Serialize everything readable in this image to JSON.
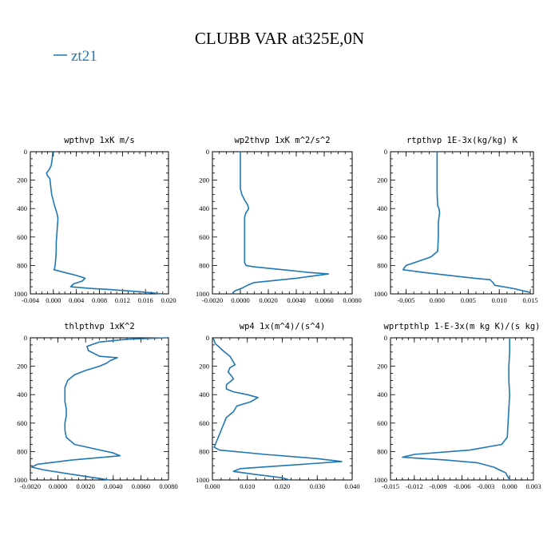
{
  "figure": {
    "title": "CLUBB VAR at325E,0N",
    "legend": {
      "label": "zt21",
      "color": "#1f77b4"
    }
  },
  "chart_data": [
    {
      "type": "line",
      "title": "wpthvp  1xK m/s",
      "xlim": [
        -0.004,
        0.02
      ],
      "xticks": [
        "-0.004",
        "0.000",
        "0.004",
        "0.008",
        "0.012",
        "0.016",
        "0.020"
      ],
      "xtick_values": [
        -0.004,
        0.0,
        0.004,
        0.008,
        0.012,
        0.016,
        0.02
      ],
      "ylim": [
        0,
        1000
      ],
      "y_inverted": true,
      "yticks": [
        "0",
        "200",
        "400",
        "600",
        "800",
        "1000"
      ],
      "series": [
        {
          "name": "zt21",
          "x": [
            -0.0001,
            -0.0002,
            -0.0004,
            -0.0008,
            -0.0012,
            -0.001,
            -0.0006,
            -0.0005,
            -0.0003,
            0.0002,
            0.0006,
            0.0008,
            0.0007,
            0.0006,
            0.0005,
            0.0005,
            0.0004,
            0.0003,
            0.0002,
            0.0001,
            0.002,
            0.004,
            0.0055,
            0.005,
            0.0035,
            0.003,
            0.006,
            0.01,
            0.015,
            0.019
          ],
          "y": [
            0,
            50,
            100,
            130,
            150,
            170,
            190,
            230,
            300,
            380,
            430,
            470,
            520,
            580,
            640,
            700,
            760,
            800,
            820,
            830,
            850,
            870,
            890,
            910,
            930,
            950,
            960,
            970,
            985,
            1000
          ]
        }
      ]
    },
    {
      "type": "line",
      "title": "wp2thvp  1xK m^2/s^2",
      "xlim": [
        -0.002,
        0.008
      ],
      "xticks": [
        "-0.0020",
        "0.0000",
        "0.0020",
        "0.0040",
        "0.0060",
        "0.0080"
      ],
      "xtick_values": [
        -0.002,
        0.0,
        0.002,
        0.004,
        0.006,
        0.008
      ],
      "ylim": [
        0,
        1000
      ],
      "y_inverted": true,
      "yticks": [
        "0",
        "200",
        "400",
        "600",
        "800",
        "1000"
      ],
      "series": [
        {
          "name": "zt21",
          "x": [
            0.0,
            0.0,
            0.0,
            0.0,
            0.0001,
            0.0003,
            0.0005,
            0.0006,
            0.0004,
            0.0003,
            0.0003,
            0.0003,
            0.0003,
            0.0003,
            0.0004,
            0.001,
            0.003,
            0.005,
            0.0063,
            0.004,
            0.001,
            0.0005,
            0.0001,
            -0.0004,
            -0.0006
          ],
          "y": [
            0,
            100,
            200,
            260,
            300,
            340,
            370,
            400,
            430,
            460,
            500,
            600,
            700,
            780,
            800,
            810,
            830,
            850,
            860,
            890,
            920,
            940,
            960,
            980,
            1000
          ]
        }
      ]
    },
    {
      "type": "line",
      "title": "rtpthvp  1E-3x(kg/kg) K",
      "xlim": [
        -0.0075,
        0.0155
      ],
      "xticks": [
        "-0.005",
        "0.000",
        "0.005",
        "0.010",
        "0.015"
      ],
      "xtick_values": [
        -0.005,
        0.0,
        0.005,
        0.01,
        0.015
      ],
      "ylim": [
        0,
        1000
      ],
      "y_inverted": true,
      "yticks": [
        "0",
        "200",
        "400",
        "600",
        "800",
        "1000"
      ],
      "series": [
        {
          "name": "zt21",
          "x": [
            0.0,
            0.0,
            0.0,
            0.0001,
            0.0003,
            0.0004,
            0.0003,
            0.0002,
            0.0002,
            0.0001,
            -0.001,
            -0.003,
            -0.005,
            -0.0055,
            -0.002,
            0.002,
            0.006,
            0.0085,
            0.009,
            0.0093,
            0.012,
            0.015
          ],
          "y": [
            0,
            100,
            300,
            380,
            400,
            430,
            460,
            500,
            600,
            700,
            740,
            770,
            800,
            830,
            850,
            870,
            890,
            900,
            920,
            940,
            960,
            990
          ]
        }
      ]
    },
    {
      "type": "line",
      "title": "thlpthvp  1xK^2",
      "xlim": [
        -0.002,
        0.008
      ],
      "xticks": [
        "-0.0020",
        "0.0000",
        "0.0020",
        "0.0040",
        "0.0060",
        "0.0080"
      ],
      "xtick_values": [
        -0.002,
        0.0,
        0.002,
        0.004,
        0.006,
        0.008
      ],
      "ylim": [
        0,
        1000
      ],
      "y_inverted": true,
      "yticks": [
        "0",
        "200",
        "400",
        "600",
        "800",
        "1000"
      ],
      "series": [
        {
          "name": "zt21",
          "x": [
            0.0079,
            0.005,
            0.003,
            0.0021,
            0.0022,
            0.003,
            0.0043,
            0.0038,
            0.0035,
            0.003,
            0.002,
            0.0012,
            0.0007,
            0.0005,
            0.0005,
            0.0005,
            0.0006,
            0.0006,
            0.0005,
            0.0005,
            0.0006,
            0.0012,
            0.004,
            0.0045,
            0.001,
            -0.0015,
            -0.0019,
            -0.001,
            0.001,
            0.003,
            0.0037
          ],
          "y": [
            0,
            10,
            30,
            60,
            90,
            130,
            140,
            160,
            180,
            200,
            230,
            260,
            300,
            350,
            400,
            450,
            500,
            550,
            600,
            650,
            700,
            750,
            810,
            830,
            860,
            890,
            910,
            930,
            960,
            990,
            1000
          ]
        }
      ]
    },
    {
      "type": "line",
      "title": "wp4  1x(m^4)/(s^4)",
      "xlim": [
        0.0,
        0.04
      ],
      "xticks": [
        "0.000",
        "0.010",
        "0.020",
        "0.030",
        "0.040"
      ],
      "xtick_values": [
        0.0,
        0.01,
        0.02,
        0.03,
        0.04
      ],
      "ylim": [
        0,
        1000
      ],
      "y_inverted": true,
      "yticks": [
        "0",
        "200",
        "400",
        "600",
        "800",
        "1000"
      ],
      "series": [
        {
          "name": "zt21",
          "x": [
            0.0002,
            0.0008,
            0.003,
            0.004,
            0.005,
            0.0055,
            0.0065,
            0.005,
            0.0045,
            0.0055,
            0.006,
            0.005,
            0.004,
            0.004,
            0.006,
            0.01,
            0.013,
            0.011,
            0.007,
            0.006,
            0.004,
            0.003,
            0.002,
            0.001,
            0.0005,
            0.002,
            0.015,
            0.03,
            0.037,
            0.02,
            0.008,
            0.006,
            0.012,
            0.02,
            0.022
          ],
          "y": [
            0,
            40,
            90,
            110,
            130,
            150,
            190,
            210,
            240,
            270,
            290,
            310,
            330,
            360,
            380,
            400,
            420,
            450,
            480,
            520,
            560,
            620,
            680,
            740,
            770,
            790,
            820,
            850,
            870,
            900,
            920,
            940,
            960,
            985,
            1000
          ]
        }
      ]
    },
    {
      "type": "line",
      "title": "wprtpthlp  1-E-3x(m kg K)/(s kg)",
      "xlim": [
        -0.015,
        0.003
      ],
      "xticks": [
        "-0.015",
        "-0.012",
        "-0.009",
        "-0.006",
        "-0.003",
        "0.000",
        "0.003"
      ],
      "xtick_values": [
        -0.015,
        -0.012,
        -0.009,
        -0.006,
        -0.003,
        0.0,
        0.003
      ],
      "ylim": [
        0,
        1000
      ],
      "y_inverted": true,
      "yticks": [
        "0",
        "200",
        "400",
        "600",
        "800",
        "1000"
      ],
      "series": [
        {
          "name": "zt21",
          "x": [
            0.0,
            0.0,
            -0.0001,
            -0.0001,
            0.0,
            -0.0001,
            -0.0002,
            -0.0003,
            -0.001,
            -0.005,
            -0.012,
            -0.0135,
            -0.008,
            -0.004,
            -0.002,
            -0.0005,
            0.0
          ],
          "y": [
            0,
            100,
            200,
            300,
            400,
            500,
            600,
            700,
            750,
            790,
            820,
            840,
            860,
            880,
            910,
            950,
            1000
          ]
        }
      ]
    }
  ]
}
